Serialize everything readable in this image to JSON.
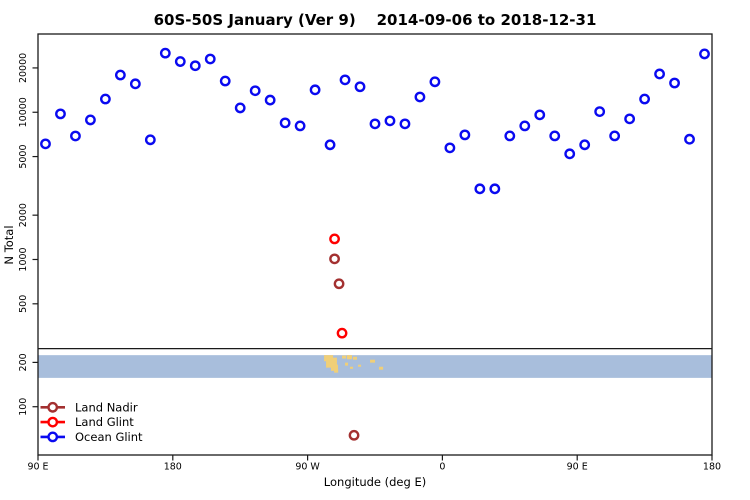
{
  "chart_data": {
    "type": "scatter",
    "title": "60S-50S January (Ver 9)    2014-09-06 to 2018-12-31",
    "xlabel": "Longitude (deg E)",
    "ylabel": "N Total",
    "x_scale": "linear",
    "y_scale": "log",
    "xlim": [
      90,
      540
    ],
    "ylim": [
      47,
      34000
    ],
    "grid": false,
    "x_ticks": [
      {
        "lon": 90,
        "label": "90 E"
      },
      {
        "lon": 180,
        "label": "180"
      },
      {
        "lon": 270,
        "label": "90 W"
      },
      {
        "lon": 360,
        "label": "0"
      },
      {
        "lon": 450,
        "label": "90 E"
      },
      {
        "lon": 540,
        "label": "180"
      }
    ],
    "y_ticks": [
      100,
      200,
      500,
      1000,
      2000,
      5000,
      10000,
      20000
    ],
    "series": [
      {
        "name": "Land Nadir",
        "color": "#A33030",
        "points": [
          {
            "lon": 288,
            "n": 1010
          },
          {
            "lon": 291,
            "n": 684
          },
          {
            "lon": 301,
            "n": 64
          }
        ]
      },
      {
        "name": "Land Glint",
        "color": "#FF0000",
        "points": [
          {
            "lon": 288,
            "n": 1380
          },
          {
            "lon": 293,
            "n": 316
          }
        ]
      },
      {
        "name": "Ocean Glint",
        "color": "#0A0AF0",
        "points": [
          {
            "lon": 95,
            "n": 6100
          },
          {
            "lon": 105,
            "n": 9750
          },
          {
            "lon": 115,
            "n": 6900
          },
          {
            "lon": 125,
            "n": 8870
          },
          {
            "lon": 135,
            "n": 12300
          },
          {
            "lon": 145,
            "n": 17900
          },
          {
            "lon": 155,
            "n": 15600
          },
          {
            "lon": 165,
            "n": 6500
          },
          {
            "lon": 175,
            "n": 25200
          },
          {
            "lon": 185,
            "n": 22100
          },
          {
            "lon": 195,
            "n": 20700
          },
          {
            "lon": 205,
            "n": 23000
          },
          {
            "lon": 215,
            "n": 16300
          },
          {
            "lon": 225,
            "n": 10700
          },
          {
            "lon": 235,
            "n": 14000
          },
          {
            "lon": 245,
            "n": 12100
          },
          {
            "lon": 255,
            "n": 8470
          },
          {
            "lon": 265,
            "n": 8080
          },
          {
            "lon": 275,
            "n": 14200
          },
          {
            "lon": 285,
            "n": 6010
          },
          {
            "lon": 295,
            "n": 16600
          },
          {
            "lon": 305,
            "n": 14900
          },
          {
            "lon": 315,
            "n": 8340
          },
          {
            "lon": 325,
            "n": 8740
          },
          {
            "lon": 335,
            "n": 8340
          },
          {
            "lon": 345,
            "n": 12700
          },
          {
            "lon": 355,
            "n": 16100
          },
          {
            "lon": 365,
            "n": 5730
          },
          {
            "lon": 375,
            "n": 7020
          },
          {
            "lon": 385,
            "n": 3020
          },
          {
            "lon": 395,
            "n": 3020
          },
          {
            "lon": 405,
            "n": 6910
          },
          {
            "lon": 415,
            "n": 8080
          },
          {
            "lon": 425,
            "n": 9600
          },
          {
            "lon": 435,
            "n": 6910
          },
          {
            "lon": 445,
            "n": 5220
          },
          {
            "lon": 455,
            "n": 6010
          },
          {
            "lon": 465,
            "n": 10100
          },
          {
            "lon": 475,
            "n": 6910
          },
          {
            "lon": 485,
            "n": 9020
          },
          {
            "lon": 495,
            "n": 12300
          },
          {
            "lon": 505,
            "n": 18200
          },
          {
            "lon": 515,
            "n": 15800
          },
          {
            "lon": 525,
            "n": 6560
          },
          {
            "lon": 535,
            "n": 24900
          }
        ]
      }
    ],
    "map_strip": {
      "separator_n": 248,
      "n_range": [
        157,
        224
      ],
      "ocean_color": "#A8BEDC",
      "land_color": "#F0CF78",
      "land": [
        {
          "lon": 281.0,
          "w": 6.0,
          "y": 0.0,
          "h": 0.27
        },
        {
          "lon": 282.3,
          "w": 7.3,
          "y": 0.11,
          "h": 0.44
        },
        {
          "lon": 285.6,
          "w": 4.7,
          "y": 0.42,
          "h": 0.27
        },
        {
          "lon": 287.7,
          "w": 2.7,
          "y": 0.64,
          "h": 0.13
        },
        {
          "lon": 293.0,
          "w": 2.7,
          "y": 0.02,
          "h": 0.13
        },
        {
          "lon": 296.3,
          "w": 3.3,
          "y": 0.0,
          "h": 0.18
        },
        {
          "lon": 300.3,
          "w": 2.7,
          "y": 0.07,
          "h": 0.13
        },
        {
          "lon": 295.0,
          "w": 2.0,
          "y": 0.33,
          "h": 0.13
        },
        {
          "lon": 298.3,
          "w": 2.0,
          "y": 0.51,
          "h": 0.09
        },
        {
          "lon": 303.7,
          "w": 2.0,
          "y": 0.42,
          "h": 0.09
        },
        {
          "lon": 311.7,
          "w": 3.3,
          "y": 0.2,
          "h": 0.13
        },
        {
          "lon": 317.7,
          "w": 2.7,
          "y": 0.51,
          "h": 0.13
        }
      ]
    },
    "legend_position": "bottom-left"
  },
  "legend": {
    "items": [
      {
        "label": "Land Nadir",
        "color": "#A33030"
      },
      {
        "label": "Land Glint",
        "color": "#FF0000"
      },
      {
        "label": "Ocean Glint",
        "color": "#0A0AF0"
      }
    ]
  }
}
